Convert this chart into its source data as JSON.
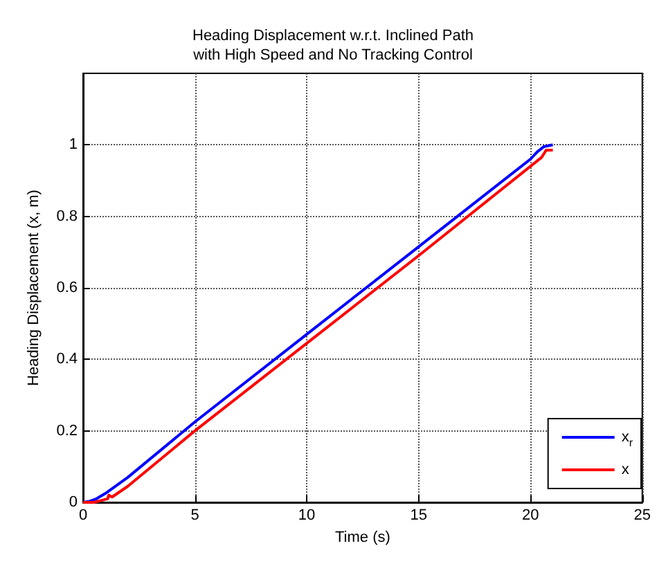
{
  "chart_data": {
    "type": "line",
    "title": "Heading Displacement w.r.t. Inclined Path\nwith High Speed and No Tracking Control",
    "xlabel": "Time (s)",
    "ylabel": "Heading Displacement (x, m)",
    "xlim": [
      0,
      25
    ],
    "xticks": [
      0,
      5,
      10,
      15,
      20,
      25
    ],
    "ylim": [
      0,
      1.2
    ],
    "yticks": [
      0,
      0.2,
      0.4,
      0.6,
      0.8,
      1
    ],
    "grid": true,
    "legend": "bottom right",
    "marker": "none",
    "line_style": "solid",
    "series": [
      {
        "name": "x$_{r}$",
        "color": "#0000ff",
        "x": [
          0,
          0.3,
          0.6,
          1,
          2,
          5,
          10,
          15,
          20,
          20.3,
          20.6,
          21
        ],
        "values": [
          0,
          0.003,
          0.01,
          0.025,
          0.07,
          0.225,
          0.47,
          0.715,
          0.96,
          0.98,
          0.995,
          1.0
        ]
      },
      {
        "name": "x",
        "color": "#ff0000",
        "x": [
          0,
          0.5,
          0.8,
          1.1,
          1.15,
          1.3,
          2,
          5,
          10,
          15,
          20,
          20.5,
          20.6,
          20.7,
          21
        ],
        "values": [
          0,
          0,
          0.005,
          0.01,
          0.02,
          0.015,
          0.045,
          0.2,
          0.445,
          0.69,
          0.94,
          0.965,
          0.975,
          0.985,
          0.985
        ]
      }
    ]
  }
}
